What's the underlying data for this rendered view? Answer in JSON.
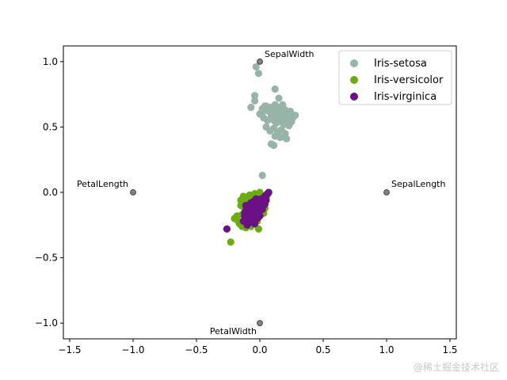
{
  "chart_data": {
    "type": "scatter",
    "title": "",
    "xlabel": "",
    "ylabel": "",
    "xlim": [
      -1.55,
      1.55
    ],
    "ylim": [
      -1.12,
      1.12
    ],
    "x_ticks": [
      -1.5,
      -1.0,
      -0.5,
      0.0,
      0.5,
      1.0,
      1.5
    ],
    "x_tick_labels": [
      "−1.5",
      "−1.0",
      "−0.5",
      "0.0",
      "0.5",
      "1.0",
      "1.5"
    ],
    "y_ticks": [
      -1.0,
      -0.5,
      0.0,
      0.5,
      1.0
    ],
    "y_tick_labels": [
      "−1.0",
      "−0.5",
      "0.0",
      "0.5",
      "1.0"
    ],
    "grid": false,
    "legend_position": "top-right",
    "anchors": [
      {
        "label": "SepalLength",
        "x": 1.0,
        "y": 0.0,
        "color": "#808080"
      },
      {
        "label": "SepalWidth",
        "x": 0.0,
        "y": 1.0,
        "color": "#808080"
      },
      {
        "label": "PetalLength",
        "x": -1.0,
        "y": 0.0,
        "color": "#808080"
      },
      {
        "label": "PetalWidth",
        "x": 0.0,
        "y": -1.0,
        "color": "#808080"
      }
    ],
    "series": [
      {
        "name": "Iris-setosa",
        "color": "#98b4a8",
        "points": [
          [
            -0.03,
            0.96
          ],
          [
            -0.01,
            0.91
          ],
          [
            0.12,
            0.79
          ],
          [
            -0.04,
            0.74
          ],
          [
            0.15,
            0.72
          ],
          [
            -0.07,
            0.65
          ],
          [
            -0.04,
            0.7
          ],
          [
            0.02,
            0.64
          ],
          [
            0.05,
            0.66
          ],
          [
            0.08,
            0.65
          ],
          [
            0.1,
            0.63
          ],
          [
            0.12,
            0.67
          ],
          [
            0.14,
            0.62
          ],
          [
            0.16,
            0.65
          ],
          [
            0.18,
            0.6
          ],
          [
            0.2,
            0.63
          ],
          [
            0.22,
            0.58
          ],
          [
            0.24,
            0.62
          ],
          [
            0.26,
            0.57
          ],
          [
            0.28,
            0.59
          ],
          [
            0.0,
            0.6
          ],
          [
            0.03,
            0.57
          ],
          [
            0.06,
            0.55
          ],
          [
            0.09,
            0.58
          ],
          [
            0.11,
            0.55
          ],
          [
            0.13,
            0.53
          ],
          [
            0.15,
            0.56
          ],
          [
            0.17,
            0.54
          ],
          [
            0.19,
            0.52
          ],
          [
            0.21,
            0.55
          ],
          [
            0.23,
            0.51
          ],
          [
            0.25,
            0.54
          ],
          [
            0.05,
            0.5
          ],
          [
            0.08,
            0.47
          ],
          [
            0.11,
            0.49
          ],
          [
            0.14,
            0.46
          ],
          [
            0.17,
            0.48
          ],
          [
            0.2,
            0.45
          ],
          [
            0.12,
            0.43
          ],
          [
            0.16,
            0.42
          ],
          [
            0.09,
            0.37
          ],
          [
            0.11,
            0.36
          ],
          [
            0.21,
            0.41
          ],
          [
            0.02,
            0.61
          ],
          [
            0.18,
            0.67
          ],
          [
            0.07,
            0.62
          ],
          [
            0.13,
            0.59
          ],
          [
            0.19,
            0.57
          ],
          [
            0.04,
            0.66
          ],
          [
            0.02,
            0.13
          ]
        ]
      },
      {
        "name": "Iris-versicolor",
        "color": "#6aad11",
        "points": [
          [
            -0.23,
            -0.38
          ],
          [
            -0.18,
            -0.18
          ],
          [
            -0.2,
            -0.2
          ],
          [
            -0.15,
            -0.1
          ],
          [
            -0.14,
            -0.17
          ],
          [
            -0.12,
            -0.06
          ],
          [
            -0.1,
            -0.12
          ],
          [
            -0.08,
            -0.02
          ],
          [
            -0.06,
            -0.08
          ],
          [
            -0.04,
            -0.01
          ],
          [
            -0.02,
            -0.05
          ],
          [
            0.0,
            0.0
          ],
          [
            0.02,
            -0.04
          ],
          [
            0.04,
            -0.08
          ],
          [
            0.06,
            -0.02
          ],
          [
            -0.16,
            -0.24
          ],
          [
            -0.13,
            -0.22
          ],
          [
            -0.11,
            -0.27
          ],
          [
            -0.09,
            -0.19
          ],
          [
            -0.07,
            -0.15
          ],
          [
            -0.05,
            -0.21
          ],
          [
            -0.03,
            -0.14
          ],
          [
            -0.01,
            -0.18
          ],
          [
            0.01,
            -0.11
          ],
          [
            0.03,
            -0.16
          ],
          [
            -0.12,
            -0.14
          ],
          [
            -0.1,
            -0.09
          ],
          [
            -0.08,
            -0.13
          ],
          [
            -0.06,
            -0.11
          ],
          [
            -0.04,
            -0.07
          ],
          [
            -0.02,
            -0.12
          ],
          [
            0.0,
            -0.09
          ],
          [
            0.02,
            -0.13
          ],
          [
            -0.14,
            -0.26
          ],
          [
            -0.1,
            -0.24
          ],
          [
            -0.06,
            -0.25
          ],
          [
            -0.02,
            -0.22
          ],
          [
            -0.01,
            -0.28
          ],
          [
            0.04,
            -0.12
          ],
          [
            -0.09,
            -0.05
          ],
          [
            -0.05,
            -0.03
          ],
          [
            -0.13,
            -0.03
          ],
          [
            -0.07,
            -0.26
          ],
          [
            -0.03,
            -0.19
          ],
          [
            -0.11,
            -0.2
          ],
          [
            -0.05,
            -0.1
          ],
          [
            0.01,
            -0.02
          ],
          [
            -0.17,
            -0.22
          ],
          [
            -0.15,
            -0.06
          ],
          [
            0.05,
            -0.05
          ]
        ]
      },
      {
        "name": "Iris-virginica",
        "color": "#6a1185",
        "points": [
          [
            -0.26,
            -0.28
          ],
          [
            -0.13,
            -0.22
          ],
          [
            -0.12,
            -0.18
          ],
          [
            -0.11,
            -0.14
          ],
          [
            -0.1,
            -0.2
          ],
          [
            -0.09,
            -0.16
          ],
          [
            -0.08,
            -0.11
          ],
          [
            -0.07,
            -0.19
          ],
          [
            -0.06,
            -0.14
          ],
          [
            -0.05,
            -0.09
          ],
          [
            -0.04,
            -0.17
          ],
          [
            -0.03,
            -0.12
          ],
          [
            -0.02,
            -0.07
          ],
          [
            -0.01,
            -0.15
          ],
          [
            0.0,
            -0.1
          ],
          [
            0.01,
            -0.05
          ],
          [
            0.02,
            -0.13
          ],
          [
            0.03,
            -0.08
          ],
          [
            0.04,
            -0.03
          ],
          [
            0.05,
            -0.06
          ],
          [
            0.06,
            -0.01
          ],
          [
            0.07,
            0.0
          ],
          [
            -0.1,
            -0.25
          ],
          [
            -0.08,
            -0.23
          ],
          [
            -0.06,
            -0.21
          ],
          [
            -0.04,
            -0.24
          ],
          [
            -0.02,
            -0.2
          ],
          [
            0.0,
            -0.18
          ],
          [
            -0.09,
            -0.13
          ],
          [
            -0.07,
            -0.08
          ],
          [
            -0.05,
            -0.13
          ],
          [
            -0.03,
            -0.1
          ],
          [
            -0.01,
            -0.08
          ],
          [
            0.01,
            -0.12
          ],
          [
            0.03,
            -0.1
          ],
          [
            -0.12,
            -0.16
          ],
          [
            -0.06,
            -0.17
          ],
          [
            -0.02,
            -0.16
          ],
          [
            0.02,
            -0.07
          ],
          [
            0.04,
            -0.09
          ],
          [
            -0.08,
            -0.18
          ],
          [
            -0.04,
            -0.12
          ],
          [
            0.0,
            -0.14
          ],
          [
            -0.11,
            -0.1
          ],
          [
            -0.03,
            -0.05
          ],
          [
            -0.07,
            -0.22
          ],
          [
            0.05,
            -0.02
          ],
          [
            -0.01,
            -0.19
          ],
          [
            -0.05,
            -0.07
          ],
          [
            0.03,
            -0.04
          ]
        ]
      }
    ]
  },
  "watermark": "@稀土掘金技术社区"
}
